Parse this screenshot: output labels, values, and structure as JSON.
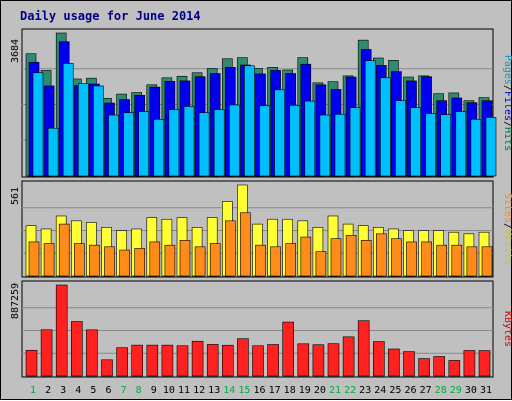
{
  "chart_data": {
    "type": "bar",
    "title": "Daily usage for June 2014",
    "categories": [
      "1",
      "2",
      "3",
      "4",
      "5",
      "6",
      "7",
      "8",
      "9",
      "10",
      "11",
      "12",
      "13",
      "14",
      "15",
      "16",
      "17",
      "18",
      "19",
      "20",
      "21",
      "22",
      "23",
      "24",
      "25",
      "26",
      "27",
      "28",
      "29",
      "30",
      "31"
    ],
    "weekend_days": [
      1,
      7,
      8,
      14,
      15,
      21,
      22,
      28,
      29
    ],
    "panels": [
      {
        "name": "hits-files-pages",
        "axis_max": 3684,
        "labels": [
          {
            "text": "Pages",
            "color": "#00a0d0"
          },
          {
            "text": "/",
            "color": "#000000"
          },
          {
            "text": "Files",
            "color": "#0000cc"
          },
          {
            "text": "/",
            "color": "#000000"
          },
          {
            "text": "Hits",
            "color": "#007744"
          }
        ],
        "series": [
          {
            "name": "Hits",
            "color": "#2e8b6e",
            "values": [
              3150,
              2720,
              3684,
              2500,
              2520,
              2000,
              2110,
              2150,
              2350,
              2530,
              2570,
              2660,
              2770,
              3020,
              3050,
              2770,
              2800,
              2730,
              3050,
              2400,
              2430,
              2580,
              3500,
              3040,
              2980,
              2550,
              2580,
              2120,
              2140,
              1940,
              2020
            ]
          },
          {
            "name": "Files",
            "color": "#0000ee",
            "values": [
              2930,
              2320,
              3460,
              2330,
              2370,
              1880,
              1970,
              2080,
              2290,
              2440,
              2450,
              2560,
              2640,
              2800,
              2860,
              2630,
              2720,
              2640,
              2880,
              2350,
              2230,
              2550,
              3260,
              2850,
              2690,
              2450,
              2560,
              1940,
              2010,
              1890,
              1940
            ]
          },
          {
            "name": "Pages",
            "color": "#00bfff",
            "values": [
              2660,
              1230,
              2900,
              2380,
              2320,
              1570,
              1630,
              1660,
              1460,
              1710,
              1790,
              1630,
              1710,
              1830,
              2840,
              1810,
              2220,
              1820,
              1930,
              1570,
              1590,
              1760,
              2970,
              2530,
              1940,
              1760,
              1610,
              1580,
              1660,
              1460,
              1510
            ]
          }
        ]
      },
      {
        "name": "visits-sites",
        "axis_max": 561,
        "labels": [
          {
            "text": "Sites",
            "color": "#ff8c00"
          },
          {
            "text": "/",
            "color": "#000000"
          },
          {
            "text": "Visits",
            "color": "#cccc00"
          }
        ],
        "series": [
          {
            "name": "Visits",
            "color": "#ffff33",
            "values": [
              310,
              290,
              370,
              340,
              330,
              300,
              280,
              290,
              360,
              350,
              360,
              300,
              360,
              460,
              561,
              320,
              350,
              350,
              340,
              300,
              370,
              320,
              310,
              300,
              290,
              280,
              280,
              280,
              270,
              260,
              270
            ]
          },
          {
            "name": "Sites",
            "color": "#ff8c1a",
            "values": [
              210,
              200,
              320,
              200,
              190,
              180,
              160,
              170,
              210,
              190,
              220,
              180,
              200,
              340,
              390,
              190,
              180,
              200,
              240,
              150,
              230,
              250,
              220,
              260,
              230,
              210,
              210,
              190,
              190,
              180,
              180
            ]
          }
        ]
      },
      {
        "name": "kbytes",
        "axis_max": 887259,
        "labels": [
          {
            "text": "KBytes",
            "color": "#dd0000"
          }
        ],
        "series": [
          {
            "name": "KBytes",
            "color": "#ff2020",
            "values": [
              251000,
              451000,
              887259,
              531000,
              450000,
              158000,
              276000,
              301000,
              301000,
              301000,
              295000,
              339000,
              308000,
              300000,
              364000,
              295000,
              307000,
              526000,
              314000,
              305000,
              315000,
              382000,
              539000,
              336000,
              263000,
              238000,
              170000,
              190000,
              152000,
              249000,
              248000
            ]
          }
        ]
      }
    ]
  }
}
